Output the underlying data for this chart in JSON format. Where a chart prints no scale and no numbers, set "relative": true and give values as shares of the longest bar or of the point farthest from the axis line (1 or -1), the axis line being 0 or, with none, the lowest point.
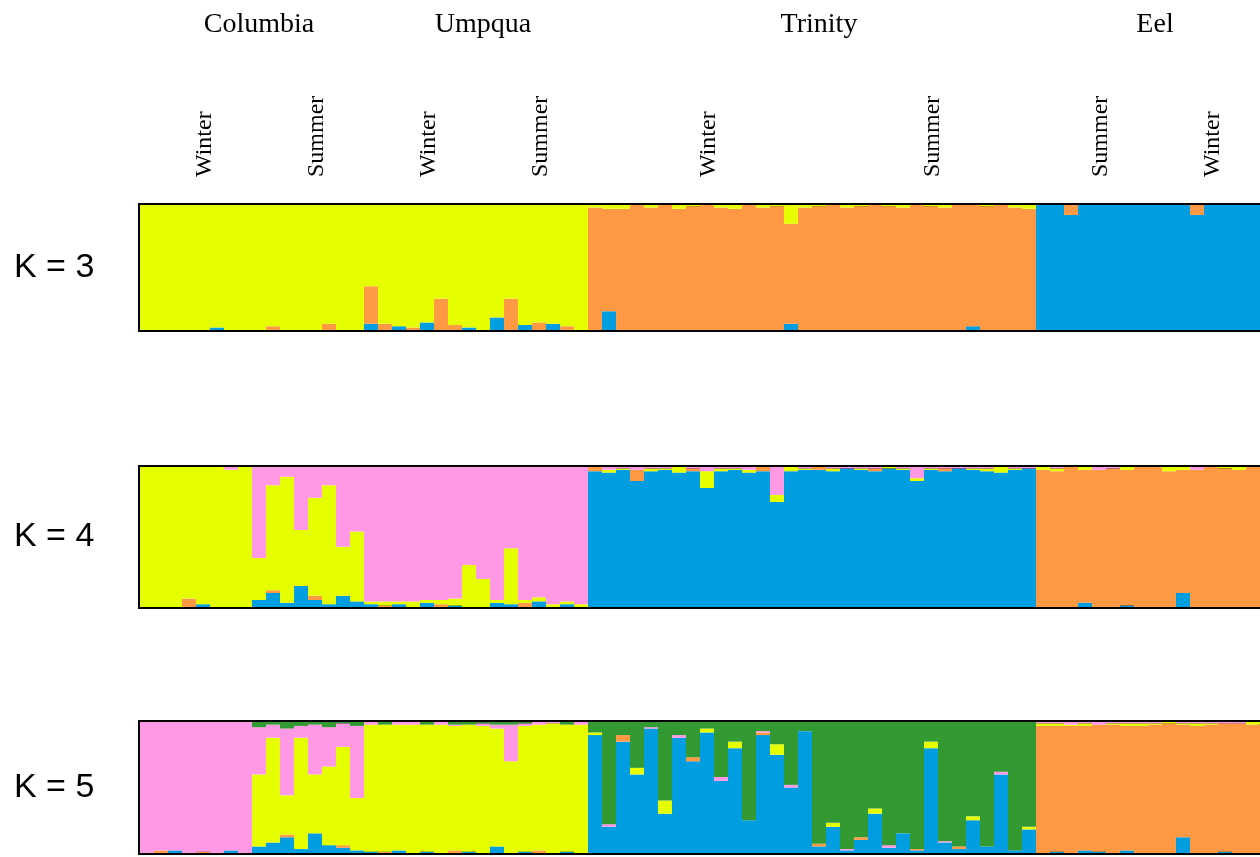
{
  "chart_data": [
    {
      "type": "bar",
      "stacked": true,
      "relative": true,
      "ylabel": "K = 3",
      "tick_labels": "x",
      "annotations": [
        "Columbia",
        "Umpqua",
        "Trinity",
        "Eel"
      ],
      "categories": [
        null,
        null,
        null,
        null,
        "Winter",
        null,
        null,
        null,
        null,
        null,
        null,
        null,
        "Summer",
        null,
        null,
        null,
        null,
        null,
        null,
        null,
        "Winter",
        null,
        null,
        null,
        null,
        null,
        null,
        null,
        "Summer",
        null,
        null,
        null,
        null,
        null,
        null,
        null,
        null,
        null,
        null,
        null,
        "Winter",
        null,
        null,
        null,
        null,
        null,
        null,
        null,
        null,
        null,
        null,
        null,
        null,
        null,
        null,
        null,
        "Summer",
        null,
        null,
        null,
        null,
        null,
        null,
        null,
        null,
        null,
        null,
        null,
        "Summer",
        null,
        null,
        null,
        null,
        null,
        null,
        null,
        "Winter",
        null,
        null,
        null
      ],
      "series": [
        {
          "color": "#009de0",
          "values": [
            0,
            0,
            0,
            0,
            0,
            0.02,
            0,
            0,
            0,
            0,
            0,
            0,
            0,
            0,
            0,
            0,
            0.05,
            0,
            0.03,
            0,
            0.06,
            0,
            0,
            0.02,
            0,
            0.1,
            0,
            0.04,
            0,
            0.05,
            0,
            0,
            0,
            0.15,
            0,
            0,
            0,
            0,
            0,
            0,
            0,
            0,
            0,
            0,
            0,
            0,
            0.05,
            0,
            0,
            0,
            0,
            0,
            0,
            0,
            0,
            0,
            0,
            0,
            0,
            0.03,
            0,
            0,
            0,
            0,
            1,
            1,
            0.92,
            1,
            1,
            1,
            1,
            1,
            1,
            1,
            1,
            0.92,
            1,
            1,
            1,
            1
          ]
        },
        {
          "color": "#ff9944",
          "values": [
            0,
            0,
            0,
            0,
            0,
            0,
            0,
            0,
            0,
            0.03,
            0,
            0,
            0,
            0.05,
            0,
            0,
            0.3,
            0.05,
            0,
            0.02,
            0,
            0.25,
            0.04,
            0,
            0,
            0,
            0.25,
            0,
            0.06,
            0,
            0.03,
            0,
            0.98,
            0.82,
            0.97,
            1,
            0.98,
            1,
            0.97,
            0.99,
            1,
            0.98,
            0.97,
            1,
            0.98,
            0.99,
            0.8,
            0.98,
            0.99,
            1,
            0.98,
            0.99,
            1,
            0.99,
            0.98,
            1,
            0.99,
            0.98,
            1,
            0.97,
            0.99,
            1,
            0.98,
            0.97,
            0,
            0,
            0.08,
            0,
            0,
            0,
            0,
            0,
            0,
            0,
            0,
            0.08,
            0,
            0,
            0,
            0
          ]
        },
        {
          "color": "#e6ff00",
          "values": [
            1,
            1,
            1,
            1,
            1,
            0.98,
            1,
            1,
            1,
            0.97,
            1,
            1,
            1,
            0.95,
            1,
            1,
            0.65,
            0.95,
            0.97,
            0.98,
            0.94,
            0.75,
            0.96,
            0.98,
            1,
            0.9,
            0.75,
            0.96,
            0.94,
            0.95,
            0.97,
            1,
            0.02,
            0.03,
            0.03,
            0,
            0.02,
            0,
            0.03,
            0.01,
            0,
            0.02,
            0.03,
            0,
            0.02,
            0.01,
            0.15,
            0.02,
            0.01,
            0,
            0.02,
            0.01,
            0,
            0.01,
            0.02,
            0,
            0.01,
            0.02,
            0,
            0,
            0.01,
            0,
            0.02,
            0.03,
            0,
            0,
            0,
            0,
            0,
            0,
            0,
            0,
            0,
            0,
            0,
            0,
            0,
            0,
            0,
            0
          ]
        }
      ]
    },
    {
      "type": "bar",
      "stacked": true,
      "relative": true,
      "ylabel": "K = 4",
      "tick_labels": false,
      "categories": [
        null,
        null,
        null,
        null,
        null,
        null,
        null,
        null,
        null,
        null,
        null,
        null,
        null,
        null,
        null,
        null,
        null,
        null,
        null,
        null,
        null,
        null,
        null,
        null,
        null,
        null,
        null,
        null,
        null,
        null,
        null,
        null,
        null,
        null,
        null,
        null,
        null,
        null,
        null,
        null,
        null,
        null,
        null,
        null,
        null,
        null,
        null,
        null,
        null,
        null,
        null,
        null,
        null,
        null,
        null,
        null,
        null,
        null,
        null,
        null,
        null,
        null,
        null,
        null,
        null,
        null,
        null,
        null,
        null,
        null,
        null,
        null,
        null,
        null,
        null,
        null,
        null,
        null,
        null,
        null
      ],
      "series": [
        {
          "color": "#009de0",
          "values": [
            0,
            0,
            0,
            0,
            0.02,
            0,
            0,
            0,
            0.05,
            0.1,
            0.03,
            0.15,
            0.05,
            0.02,
            0.08,
            0.04,
            0.02,
            0,
            0.02,
            0,
            0.03,
            0,
            0.01,
            0,
            0,
            0.03,
            0.02,
            0,
            0.04,
            0,
            0.02,
            0,
            0.97,
            0.96,
            0.98,
            0.9,
            0.97,
            0.98,
            0.96,
            0.97,
            0.85,
            0.97,
            0.98,
            0.96,
            0.97,
            0.75,
            0.97,
            0.98,
            0.98,
            0.97,
            0.99,
            0.98,
            0.97,
            0.99,
            0.98,
            0.9,
            0.98,
            0.97,
            0.99,
            0.98,
            0.97,
            0.96,
            0.98,
            0.99,
            0,
            0,
            0,
            0.03,
            0,
            0,
            0.01,
            0,
            0,
            0,
            0.1,
            0,
            0,
            0,
            0,
            0
          ]
        },
        {
          "color": "#ff9944",
          "values": [
            0,
            0,
            0,
            0.06,
            0,
            0,
            0,
            0,
            0,
            0.02,
            0,
            0,
            0.03,
            0,
            0,
            0,
            0,
            0.01,
            0,
            0,
            0,
            0.02,
            0,
            0,
            0,
            0,
            0,
            0.03,
            0,
            0,
            0,
            0,
            0.03,
            0,
            0,
            0.08,
            0,
            0,
            0,
            0.02,
            0,
            0,
            0,
            0,
            0.03,
            0,
            0,
            0,
            0.02,
            0,
            0,
            0,
            0.02,
            0,
            0,
            0,
            0,
            0.02,
            0,
            0,
            0,
            0,
            0,
            0,
            0.98,
            0.97,
            1,
            0.95,
            0.98,
            0.99,
            0.97,
            1,
            1,
            0.97,
            0.88,
            0.98,
            1,
            0.99,
            0.98,
            1
          ]
        },
        {
          "color": "#e6ff00",
          "values": [
            1,
            1,
            1,
            0.94,
            0.98,
            1,
            0.98,
            1,
            0.3,
            0.75,
            0.9,
            0.4,
            0.7,
            0.85,
            0.35,
            0.5,
            0.02,
            0.03,
            0.02,
            0.04,
            0.02,
            0.03,
            0.05,
            0.3,
            0.2,
            0.02,
            0.4,
            0.02,
            0.03,
            0.02,
            0.02,
            0.02,
            0,
            0.02,
            0.01,
            0,
            0.02,
            0.01,
            0.04,
            0,
            0.12,
            0.02,
            0.01,
            0.02,
            0,
            0.05,
            0.03,
            0.01,
            0,
            0.02,
            0,
            0.01,
            0,
            0.01,
            0.01,
            0.02,
            0.01,
            0,
            0,
            0.01,
            0.02,
            0.04,
            0.01,
            0,
            0.02,
            0.02,
            0,
            0.02,
            0,
            0,
            0.02,
            0,
            0,
            0.03,
            0.02,
            0,
            0,
            0.01,
            0.02,
            0
          ]
        },
        {
          "color": "#ff99e6",
          "values": [
            0,
            0,
            0,
            0,
            0,
            0,
            0.02,
            0,
            0.65,
            0.13,
            0.07,
            0.45,
            0.22,
            0.13,
            0.57,
            0.46,
            0.96,
            0.96,
            0.96,
            0.96,
            0.95,
            0.95,
            0.94,
            0.7,
            0.8,
            0.95,
            0.58,
            0.95,
            0.93,
            0.98,
            0.96,
            0.98,
            0,
            0.02,
            0.01,
            0.02,
            0.01,
            0.01,
            0,
            0.01,
            0.03,
            0.01,
            0.01,
            0.02,
            0,
            0.2,
            0,
            0.01,
            0,
            0.01,
            0.01,
            0.01,
            0.01,
            0,
            0.01,
            0.08,
            0.01,
            0.01,
            0.01,
            0.01,
            0.01,
            0,
            0.01,
            0.01,
            0,
            0.01,
            0,
            0,
            0.02,
            0.01,
            0,
            0,
            0,
            0,
            0,
            0.02,
            0,
            0,
            0,
            0
          ]
        }
      ]
    },
    {
      "type": "bar",
      "stacked": true,
      "relative": true,
      "ylabel": "K = 5",
      "tick_labels": false,
      "categories": [
        null,
        null,
        null,
        null,
        null,
        null,
        null,
        null,
        null,
        null,
        null,
        null,
        null,
        null,
        null,
        null,
        null,
        null,
        null,
        null,
        null,
        null,
        null,
        null,
        null,
        null,
        null,
        null,
        null,
        null,
        null,
        null,
        null,
        null,
        null,
        null,
        null,
        null,
        null,
        null,
        null,
        null,
        null,
        null,
        null,
        null,
        null,
        null,
        null,
        null,
        null,
        null,
        null,
        null,
        null,
        null,
        null,
        null,
        null,
        null,
        null,
        null,
        null,
        null,
        null,
        null,
        null,
        null,
        null,
        null,
        null,
        null,
        null,
        null,
        null,
        null,
        null,
        null,
        null,
        null
      ],
      "series": [
        {
          "color": "#009de0",
          "values": [
            0,
            0,
            0.02,
            0,
            0,
            0,
            0.02,
            0,
            0.05,
            0.08,
            0.12,
            0.03,
            0.15,
            0.06,
            0.04,
            0.02,
            0.01,
            0,
            0.02,
            0,
            0.01,
            0,
            0,
            0.01,
            0,
            0.05,
            0,
            0.01,
            0,
            0,
            0.01,
            0,
            0.9,
            0.2,
            0.85,
            0.6,
            0.95,
            0.3,
            0.88,
            0.7,
            0.92,
            0.55,
            0.8,
            0.25,
            0.9,
            0.75,
            0.5,
            0.93,
            0.05,
            0.2,
            0.02,
            0.1,
            0.3,
            0.04,
            0.15,
            0.02,
            0.8,
            0.08,
            0.03,
            0.25,
            0.05,
            0.6,
            0.02,
            0.18,
            0,
            0.01,
            0,
            0.02,
            0.01,
            0,
            0.02,
            0,
            0,
            0,
            0.12,
            0,
            0,
            0.01,
            0,
            0
          ]
        },
        {
          "color": "#ff9944",
          "values": [
            0,
            0.02,
            0,
            0,
            0.01,
            0,
            0,
            0,
            0,
            0,
            0.02,
            0,
            0,
            0,
            0.02,
            0,
            0,
            0.01,
            0,
            0,
            0,
            0,
            0.02,
            0,
            0,
            0,
            0,
            0,
            0.02,
            0,
            0,
            0,
            0,
            0,
            0.05,
            0,
            0,
            0,
            0,
            0.03,
            0,
            0,
            0,
            0,
            0.02,
            0,
            0,
            0,
            0.02,
            0,
            0,
            0.02,
            0,
            0,
            0,
            0.01,
            0,
            0,
            0.02,
            0,
            0,
            0,
            0,
            0,
            0.97,
            0.96,
            0.97,
            0.95,
            0.97,
            0.98,
            0.95,
            0.97,
            0.98,
            0.99,
            0.86,
            0.97,
            0.98,
            0.98,
            0.99,
            0.98
          ]
        },
        {
          "color": "#e6ff00",
          "values": [
            0,
            0,
            0,
            0,
            0,
            0,
            0,
            0,
            0.55,
            0.8,
            0.3,
            0.85,
            0.45,
            0.6,
            0.75,
            0.4,
            0.97,
            0.97,
            0.96,
            0.98,
            0.97,
            0.98,
            0.95,
            0.97,
            0.97,
            0.9,
            0.7,
            0.96,
            0.96,
            0.99,
            0.97,
            0.98,
            0.02,
            0,
            0,
            0.05,
            0,
            0.1,
            0,
            0,
            0.03,
            0,
            0.05,
            0,
            0,
            0.08,
            0,
            0,
            0,
            0.03,
            0,
            0,
            0.04,
            0,
            0,
            0,
            0.05,
            0,
            0,
            0.03,
            0,
            0,
            0,
            0.02,
            0.02,
            0.02,
            0.01,
            0.02,
            0,
            0.01,
            0.02,
            0.02,
            0.01,
            0.01,
            0.01,
            0.02,
            0.01,
            0,
            0,
            0.02
          ]
        },
        {
          "color": "#ff99e6",
          "values": [
            1,
            0.98,
            0.98,
            1,
            0.99,
            1,
            0.98,
            1,
            0.36,
            0.1,
            0.51,
            0.09,
            0.38,
            0.3,
            0.18,
            0.55,
            0.02,
            0,
            0.02,
            0.02,
            0,
            0.02,
            0.01,
            0,
            0.02,
            0.03,
            0.28,
            0.02,
            0.02,
            0.01,
            0,
            0.02,
            0,
            0.02,
            0,
            0,
            0.01,
            0,
            0.02,
            0,
            0,
            0.03,
            0,
            0,
            0.01,
            0,
            0.02,
            0,
            0,
            0,
            0.01,
            0,
            0,
            0.02,
            0,
            0,
            0,
            0.01,
            0,
            0,
            0,
            0.02,
            0,
            0,
            0.01,
            0.01,
            0.02,
            0.01,
            0.02,
            0.01,
            0.01,
            0.01,
            0.01,
            0,
            0.01,
            0.01,
            0.01,
            0.01,
            0.01,
            0
          ]
        },
        {
          "color": "#339933",
          "values": [
            0,
            0,
            0,
            0,
            0,
            0,
            0,
            0,
            0.04,
            0.02,
            0.05,
            0.03,
            0.02,
            0.04,
            0.01,
            0.03,
            0,
            0.02,
            0,
            0,
            0.02,
            0,
            0.02,
            0.02,
            0.01,
            0.02,
            0.02,
            0.01,
            0,
            0,
            0.02,
            0,
            0.08,
            0.78,
            0.1,
            0.35,
            0.04,
            0.6,
            0.1,
            0.27,
            0.05,
            0.42,
            0.15,
            0.75,
            0.07,
            0.17,
            0.48,
            0.07,
            0.93,
            0.77,
            0.97,
            0.88,
            0.66,
            0.94,
            0.85,
            0.97,
            0.15,
            0.91,
            0.95,
            0.72,
            0.95,
            0.38,
            0.98,
            0.8,
            0,
            0,
            0,
            0,
            0,
            0,
            0,
            0,
            0,
            0,
            0,
            0,
            0,
            0,
            0,
            0
          ]
        }
      ]
    }
  ]
}
